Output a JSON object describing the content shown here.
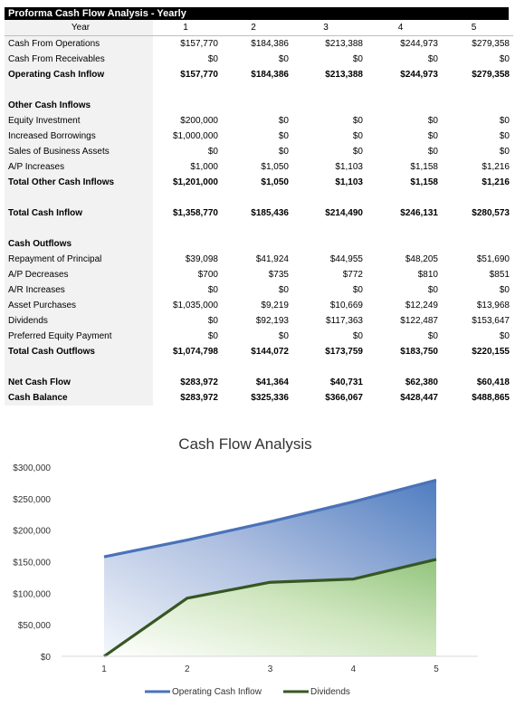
{
  "sheet": {
    "title": "Proforma Cash Flow Analysis - Yearly",
    "year_label": "Year",
    "years": [
      "1",
      "2",
      "3",
      "4",
      "5"
    ],
    "rows": [
      {
        "label": "Cash From Operations",
        "values": [
          "$157,770",
          "$184,386",
          "$213,388",
          "$244,973",
          "$279,358"
        ],
        "bold": false
      },
      {
        "label": "Cash From Receivables",
        "values": [
          "$0",
          "$0",
          "$0",
          "$0",
          "$0"
        ],
        "bold": false
      },
      {
        "label": "Operating Cash Inflow",
        "values": [
          "$157,770",
          "$184,386",
          "$213,388",
          "$244,973",
          "$279,358"
        ],
        "bold": true
      },
      {
        "label": "",
        "values": [
          "",
          "",
          "",
          "",
          ""
        ],
        "bold": false
      },
      {
        "label": "Other Cash Inflows",
        "values": [
          "",
          "",
          "",
          "",
          ""
        ],
        "bold": true
      },
      {
        "label": "Equity Investment",
        "values": [
          "$200,000",
          "$0",
          "$0",
          "$0",
          "$0"
        ],
        "bold": false
      },
      {
        "label": "Increased Borrowings",
        "values": [
          "$1,000,000",
          "$0",
          "$0",
          "$0",
          "$0"
        ],
        "bold": false
      },
      {
        "label": "Sales of Business Assets",
        "values": [
          "$0",
          "$0",
          "$0",
          "$0",
          "$0"
        ],
        "bold": false
      },
      {
        "label": "A/P Increases",
        "values": [
          "$1,000",
          "$1,050",
          "$1,103",
          "$1,158",
          "$1,216"
        ],
        "bold": false
      },
      {
        "label": "Total Other Cash Inflows",
        "values": [
          "$1,201,000",
          "$1,050",
          "$1,103",
          "$1,158",
          "$1,216"
        ],
        "bold": true
      },
      {
        "label": "",
        "values": [
          "",
          "",
          "",
          "",
          ""
        ],
        "bold": false
      },
      {
        "label": "Total Cash Inflow",
        "values": [
          "$1,358,770",
          "$185,436",
          "$214,490",
          "$246,131",
          "$280,573"
        ],
        "bold": true
      },
      {
        "label": "",
        "values": [
          "",
          "",
          "",
          "",
          ""
        ],
        "bold": false
      },
      {
        "label": "Cash Outflows",
        "values": [
          "",
          "",
          "",
          "",
          ""
        ],
        "bold": true
      },
      {
        "label": "Repayment of Principal",
        "values": [
          "$39,098",
          "$41,924",
          "$44,955",
          "$48,205",
          "$51,690"
        ],
        "bold": false
      },
      {
        "label": "A/P Decreases",
        "values": [
          "$700",
          "$735",
          "$772",
          "$810",
          "$851"
        ],
        "bold": false
      },
      {
        "label": "A/R Increases",
        "values": [
          "$0",
          "$0",
          "$0",
          "$0",
          "$0"
        ],
        "bold": false
      },
      {
        "label": "Asset Purchases",
        "values": [
          "$1,035,000",
          "$9,219",
          "$10,669",
          "$12,249",
          "$13,968"
        ],
        "bold": false
      },
      {
        "label": "Dividends",
        "values": [
          "$0",
          "$92,193",
          "$117,363",
          "$122,487",
          "$153,647"
        ],
        "bold": false
      },
      {
        "label": "Preferred Equity Payment",
        "values": [
          "$0",
          "$0",
          "$0",
          "$0",
          "$0"
        ],
        "bold": false
      },
      {
        "label": "Total Cash Outflows",
        "values": [
          "$1,074,798",
          "$144,072",
          "$173,759",
          "$183,750",
          "$220,155"
        ],
        "bold": true
      },
      {
        "label": "",
        "values": [
          "",
          "",
          "",
          "",
          ""
        ],
        "bold": false
      },
      {
        "label": "Net Cash Flow",
        "values": [
          "$283,972",
          "$41,364",
          "$40,731",
          "$62,380",
          "$60,418"
        ],
        "bold": true
      },
      {
        "label": "Cash Balance",
        "values": [
          "$283,972",
          "$325,336",
          "$366,067",
          "$428,447",
          "$488,865"
        ],
        "bold": true
      }
    ]
  },
  "chart_data": {
    "type": "area",
    "title": "Cash Flow Analysis",
    "x": [
      1,
      2,
      3,
      4,
      5
    ],
    "x_tick_labels": [
      "1",
      "2",
      "3",
      "4",
      "5"
    ],
    "ylim": [
      0,
      300000
    ],
    "y_ticks": [
      0,
      50000,
      100000,
      150000,
      200000,
      250000,
      300000
    ],
    "y_tick_labels": [
      "$0",
      "$50,000",
      "$100,000",
      "$150,000",
      "$200,000",
      "$250,000",
      "$300,000"
    ],
    "grid": false,
    "legend_position": "bottom",
    "series": [
      {
        "name": "Operating Cash Inflow",
        "values": [
          157770,
          184386,
          213388,
          244973,
          279358
        ],
        "color": "#4a72b8"
      },
      {
        "name": "Dividends",
        "values": [
          0,
          92193,
          117363,
          122487,
          153647
        ],
        "color": "#375623"
      }
    ]
  }
}
